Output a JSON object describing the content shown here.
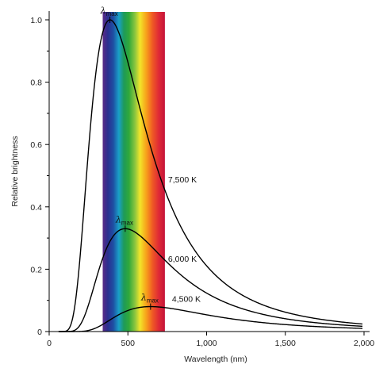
{
  "chart_data": {
    "type": "line",
    "xlabel": "Wavelength (nm)",
    "ylabel": "Relative brightness",
    "xlim": [
      0,
      2000
    ],
    "ylim": [
      0,
      1.05
    ],
    "x_ticks": [
      0,
      500,
      1000,
      1500,
      2000
    ],
    "x_tick_labels": [
      "0",
      "500",
      "1,000",
      "1,500",
      "2,000"
    ],
    "y_ticks": [
      0,
      0.2,
      0.4,
      0.6,
      0.8,
      1.0
    ],
    "y_tick_labels": [
      "0",
      "0.2",
      "0.4",
      "0.6",
      "0.8",
      "1.0"
    ],
    "peak_marker_label": "λmax",
    "visible_band_nm": [
      340,
      735
    ],
    "series": [
      {
        "name": "7,500 K",
        "temperature_K": 7500,
        "peak_x": 386,
        "peak_y": 1.0
      },
      {
        "name": "6,000 K",
        "temperature_K": 6000,
        "peak_x": 483,
        "peak_y": 0.33
      },
      {
        "name": "4,500 K",
        "temperature_K": 4500,
        "peak_x": 644,
        "peak_y": 0.08
      }
    ],
    "grid": false,
    "legend": "none"
  }
}
